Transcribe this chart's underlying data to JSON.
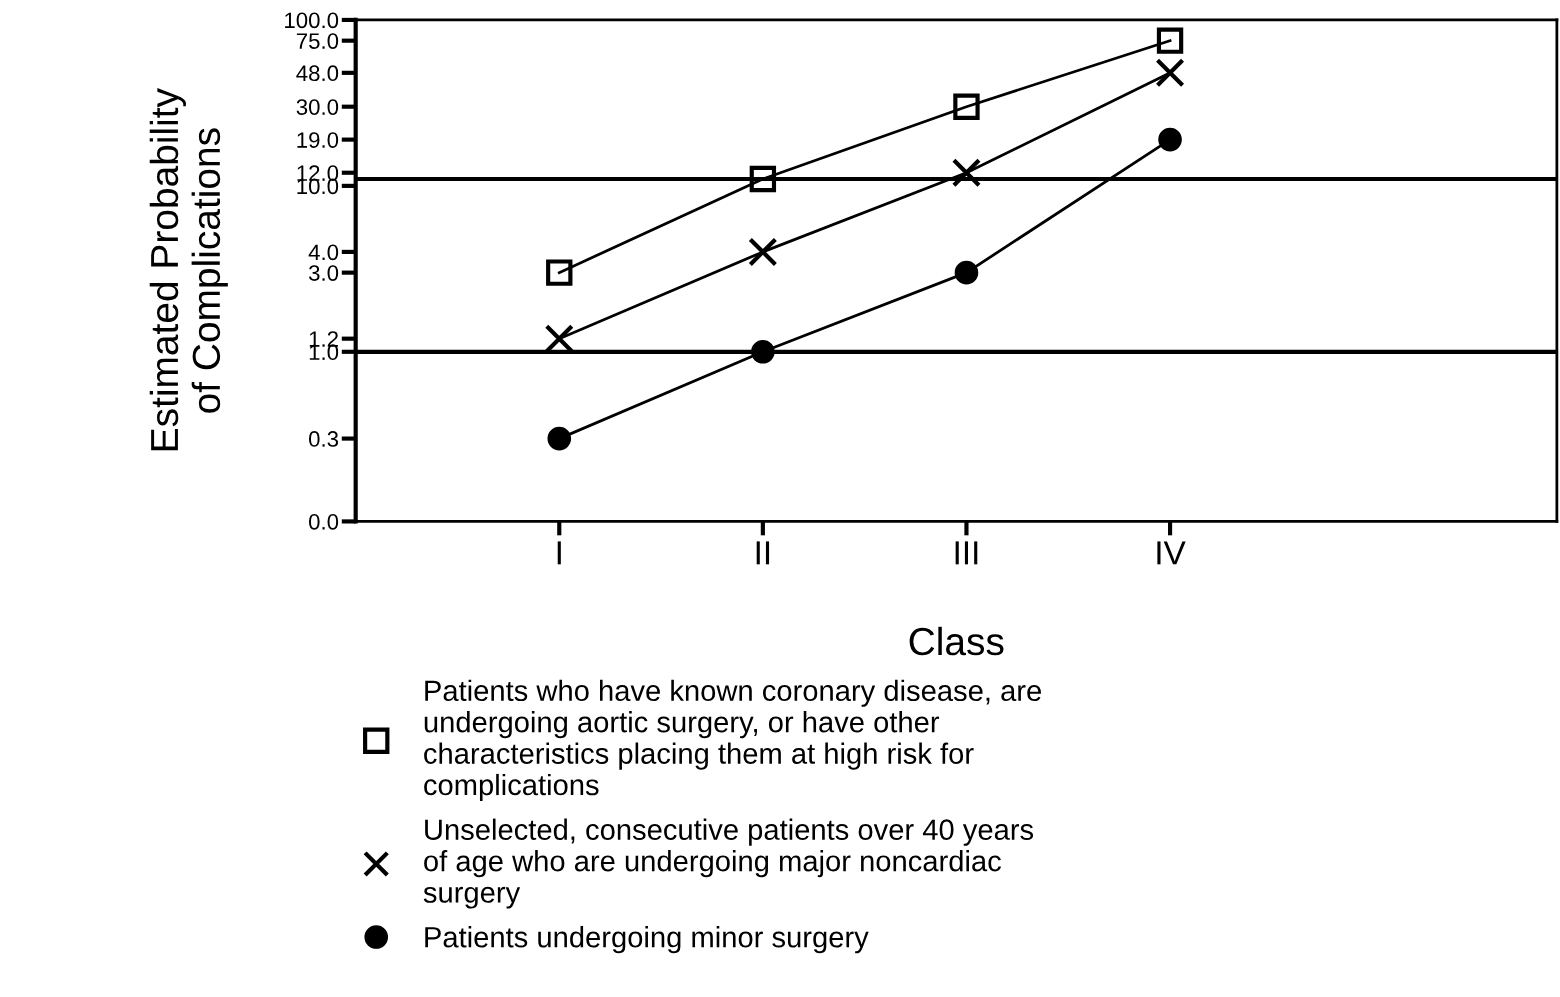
{
  "chart_data": {
    "type": "line",
    "xlabel": "Class",
    "ylabel": "Estimated Probability\nof Complications",
    "categories": [
      "I",
      "II",
      "III",
      "IV"
    ],
    "series": [
      {
        "name": "Patients who have known coronary disease, are undergoing aortic surgery, or have other characteristics placing them at high risk for complications",
        "color": "#000000",
        "marker": "square",
        "values": [
          3.0,
          11.0,
          30.0,
          75.0
        ]
      },
      {
        "name": "Unselected, consecutive patients over 40 years of age who are undergoing major noncardiac surgery",
        "color": "#000000",
        "marker": "cross",
        "values": [
          1.2,
          4.0,
          12.0,
          48.0
        ]
      },
      {
        "name": "Patients undergoing minor surgery",
        "color": "#000000",
        "marker": "circle",
        "values": [
          0.3,
          1.0,
          3.0,
          19.0
        ]
      }
    ],
    "log": "y",
    "ylim": [
      0,
      100
    ],
    "yticks": [
      {
        "value": 0,
        "label": "0.0"
      },
      {
        "value": 0.3,
        "label": "0.3"
      },
      {
        "value": 1.0,
        "label": "1.0"
      },
      {
        "value": 1.2,
        "label": "1.2"
      },
      {
        "value": 3.0,
        "label": "3.0"
      },
      {
        "value": 4.0,
        "label": "4.0"
      },
      {
        "value": 10.0,
        "label": "10.0"
      },
      {
        "value": 12.0,
        "label": "12.0"
      },
      {
        "value": 19.0,
        "label": "19.0"
      },
      {
        "value": 30.0,
        "label": "30.0"
      },
      {
        "value": 48.0,
        "label": "48.0"
      },
      {
        "value": 75.0,
        "label": "75.0"
      },
      {
        "value": 100.0,
        "label": "100.0"
      }
    ],
    "ref_lines": [
      {
        "axis": "y",
        "value": 11.0,
        "color": "#000000"
      },
      {
        "axis": "y",
        "value": 1.0,
        "color": "#000000"
      }
    ],
    "line_style": "solid",
    "grid": false,
    "legend": "bottom"
  }
}
